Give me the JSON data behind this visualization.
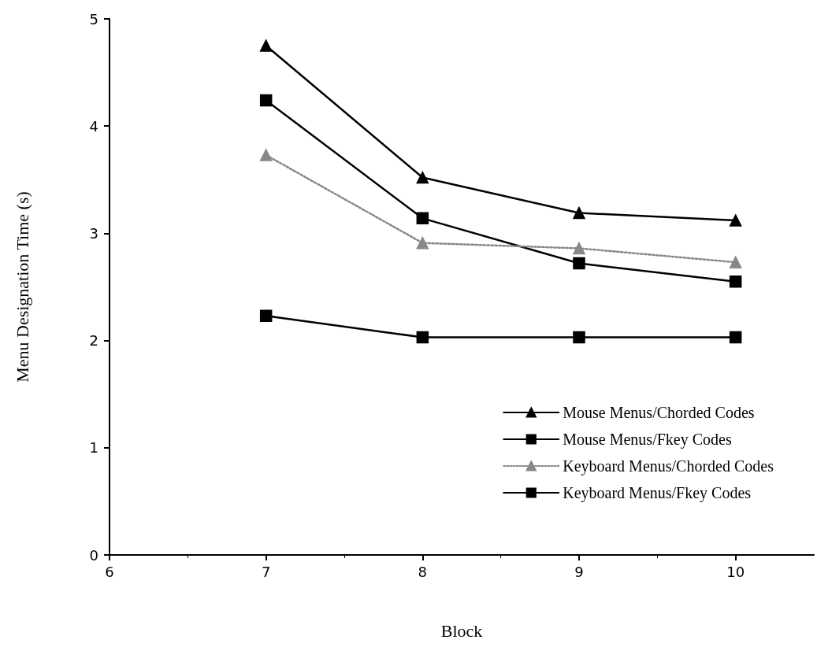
{
  "chart_data": {
    "type": "line",
    "xlabel": "Block",
    "ylabel": "Menu Designation Time (s)",
    "x": [
      7,
      8,
      9,
      10
    ],
    "series": [
      {
        "name": "Mouse Menus/Chorded Codes",
        "color": "#000000",
        "marker": "triangle",
        "line_style": "solid",
        "values": [
          4.75,
          3.52,
          3.19,
          3.12
        ]
      },
      {
        "name": "Mouse Menus/Fkey Codes",
        "color": "#000000",
        "marker": "square",
        "line_style": "solid",
        "values": [
          4.24,
          3.14,
          2.72,
          2.55
        ]
      },
      {
        "name": "Keyboard Menus/Chorded Codes",
        "color": "#888888",
        "marker": "triangle",
        "line_style": "dotted",
        "values": [
          3.73,
          2.91,
          2.86,
          2.73
        ]
      },
      {
        "name": "Keyboard Menus/Fkey Codes",
        "color": "#000000",
        "marker": "square",
        "line_style": "solid",
        "values": [
          2.23,
          2.03,
          2.03,
          2.03
        ]
      }
    ],
    "xlim": [
      6,
      10.5
    ],
    "xticks": [
      6,
      7,
      8,
      9,
      10
    ],
    "ylim": [
      0,
      5
    ],
    "yticks": [
      0,
      1,
      2,
      3,
      4,
      5
    ],
    "grid": false,
    "legend": "bottom right"
  }
}
